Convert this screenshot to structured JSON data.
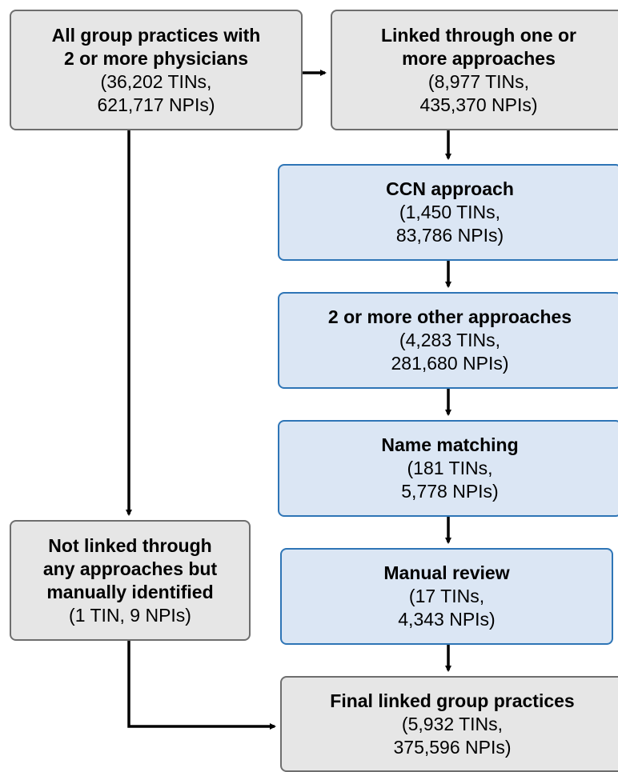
{
  "nodes": [
    {
      "title": [
        "All group practices with",
        "2 or more physicians"
      ],
      "detail": [
        "(36,202 TINs,",
        "621,717 NPIs)"
      ]
    },
    {
      "title": [
        "Linked through one or",
        "more approaches"
      ],
      "detail": [
        "(8,977 TINs,",
        "435,370 NPIs)"
      ]
    },
    {
      "title": [
        "CCN approach"
      ],
      "detail": [
        "(1,450 TINs,",
        "83,786 NPIs)"
      ]
    },
    {
      "title": [
        "2 or more other approaches"
      ],
      "detail": [
        "(4,283 TINs,",
        "281,680 NPIs)"
      ]
    },
    {
      "title": [
        "Name matching"
      ],
      "detail": [
        "(181 TINs,",
        "5,778 NPIs)"
      ]
    },
    {
      "title": [
        "Manual review"
      ],
      "detail": [
        "(17 TINs,",
        "4,343 NPIs)"
      ]
    },
    {
      "title": [
        "Not linked through",
        "any approaches but",
        "manually identified"
      ],
      "detail": [
        "(1 TIN, 9 NPIs)"
      ]
    },
    {
      "title": [
        "Final linked group practices"
      ],
      "detail": [
        "(5,932 TINs,",
        "375,596 NPIs)"
      ]
    }
  ]
}
